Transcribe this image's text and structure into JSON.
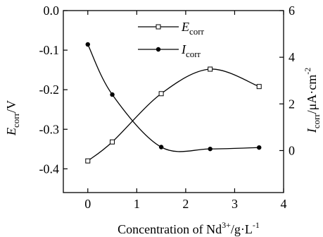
{
  "chart_data": {
    "type": "line",
    "x": [
      0,
      0.5,
      1.5,
      2.5,
      3.5
    ],
    "xlim": [
      -0.5,
      4
    ],
    "x_ticks": [
      0,
      1,
      2,
      3,
      4
    ],
    "xlabel": {
      "main": "Concentration of Nd",
      "sup": "3+",
      "rest": "/g·L",
      "sup2": "-1"
    },
    "left_axis": {
      "label": {
        "main": "E",
        "sub": "corr",
        "rest": "/V"
      },
      "ylim": [
        -0.46,
        0.0
      ],
      "ticks": [
        0.0,
        -0.1,
        -0.2,
        -0.3,
        -0.4
      ],
      "tick_labels": [
        "0.0",
        "-0.1",
        "-0.2",
        "-0.3",
        "-0.4"
      ]
    },
    "right_axis": {
      "label": {
        "main": "I",
        "sub": "corr",
        "rest": "/μA·cm",
        "sup": "-2"
      },
      "ylim": [
        -1.8,
        6
      ],
      "ticks": [
        0,
        2,
        4,
        6
      ],
      "tick_labels": [
        "0",
        "2",
        "4",
        "6"
      ]
    },
    "series": [
      {
        "name_main": "E",
        "name_sub": "corr",
        "axis": "left",
        "marker": "open-square",
        "values": [
          -0.38,
          -0.332,
          -0.21,
          -0.148,
          -0.192
        ]
      },
      {
        "name_main": "I",
        "name_sub": "corr",
        "axis": "right",
        "marker": "filled-circle",
        "values": [
          4.55,
          2.4,
          0.15,
          0.07,
          0.13
        ]
      }
    ],
    "legend": "top-right"
  }
}
